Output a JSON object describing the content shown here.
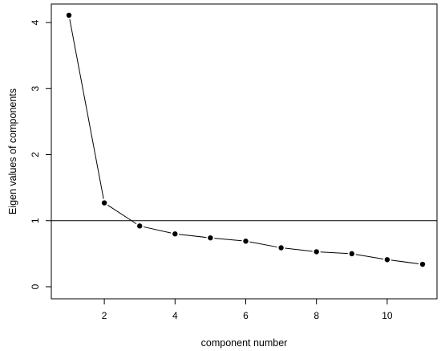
{
  "chart_data": {
    "type": "line",
    "title": "",
    "xlabel": "component number",
    "ylabel": "Eigen values of components",
    "xlim": [
      1,
      11
    ],
    "ylim": [
      0,
      4.11
    ],
    "x_ticks": [
      2,
      4,
      6,
      8,
      10
    ],
    "y_ticks": [
      0,
      1,
      2,
      3,
      4
    ],
    "grid": false,
    "legend": "none",
    "reference_line": {
      "orientation": "horizontal",
      "y": 1
    },
    "series": [
      {
        "x": [
          1,
          2,
          3,
          4,
          5,
          6,
          7,
          8,
          9,
          10,
          11
        ],
        "values": [
          4.11,
          1.27,
          0.92,
          0.8,
          0.74,
          0.69,
          0.59,
          0.53,
          0.5,
          0.41,
          0.34
        ],
        "marker": "filled-circle",
        "color": "#000000"
      }
    ]
  }
}
